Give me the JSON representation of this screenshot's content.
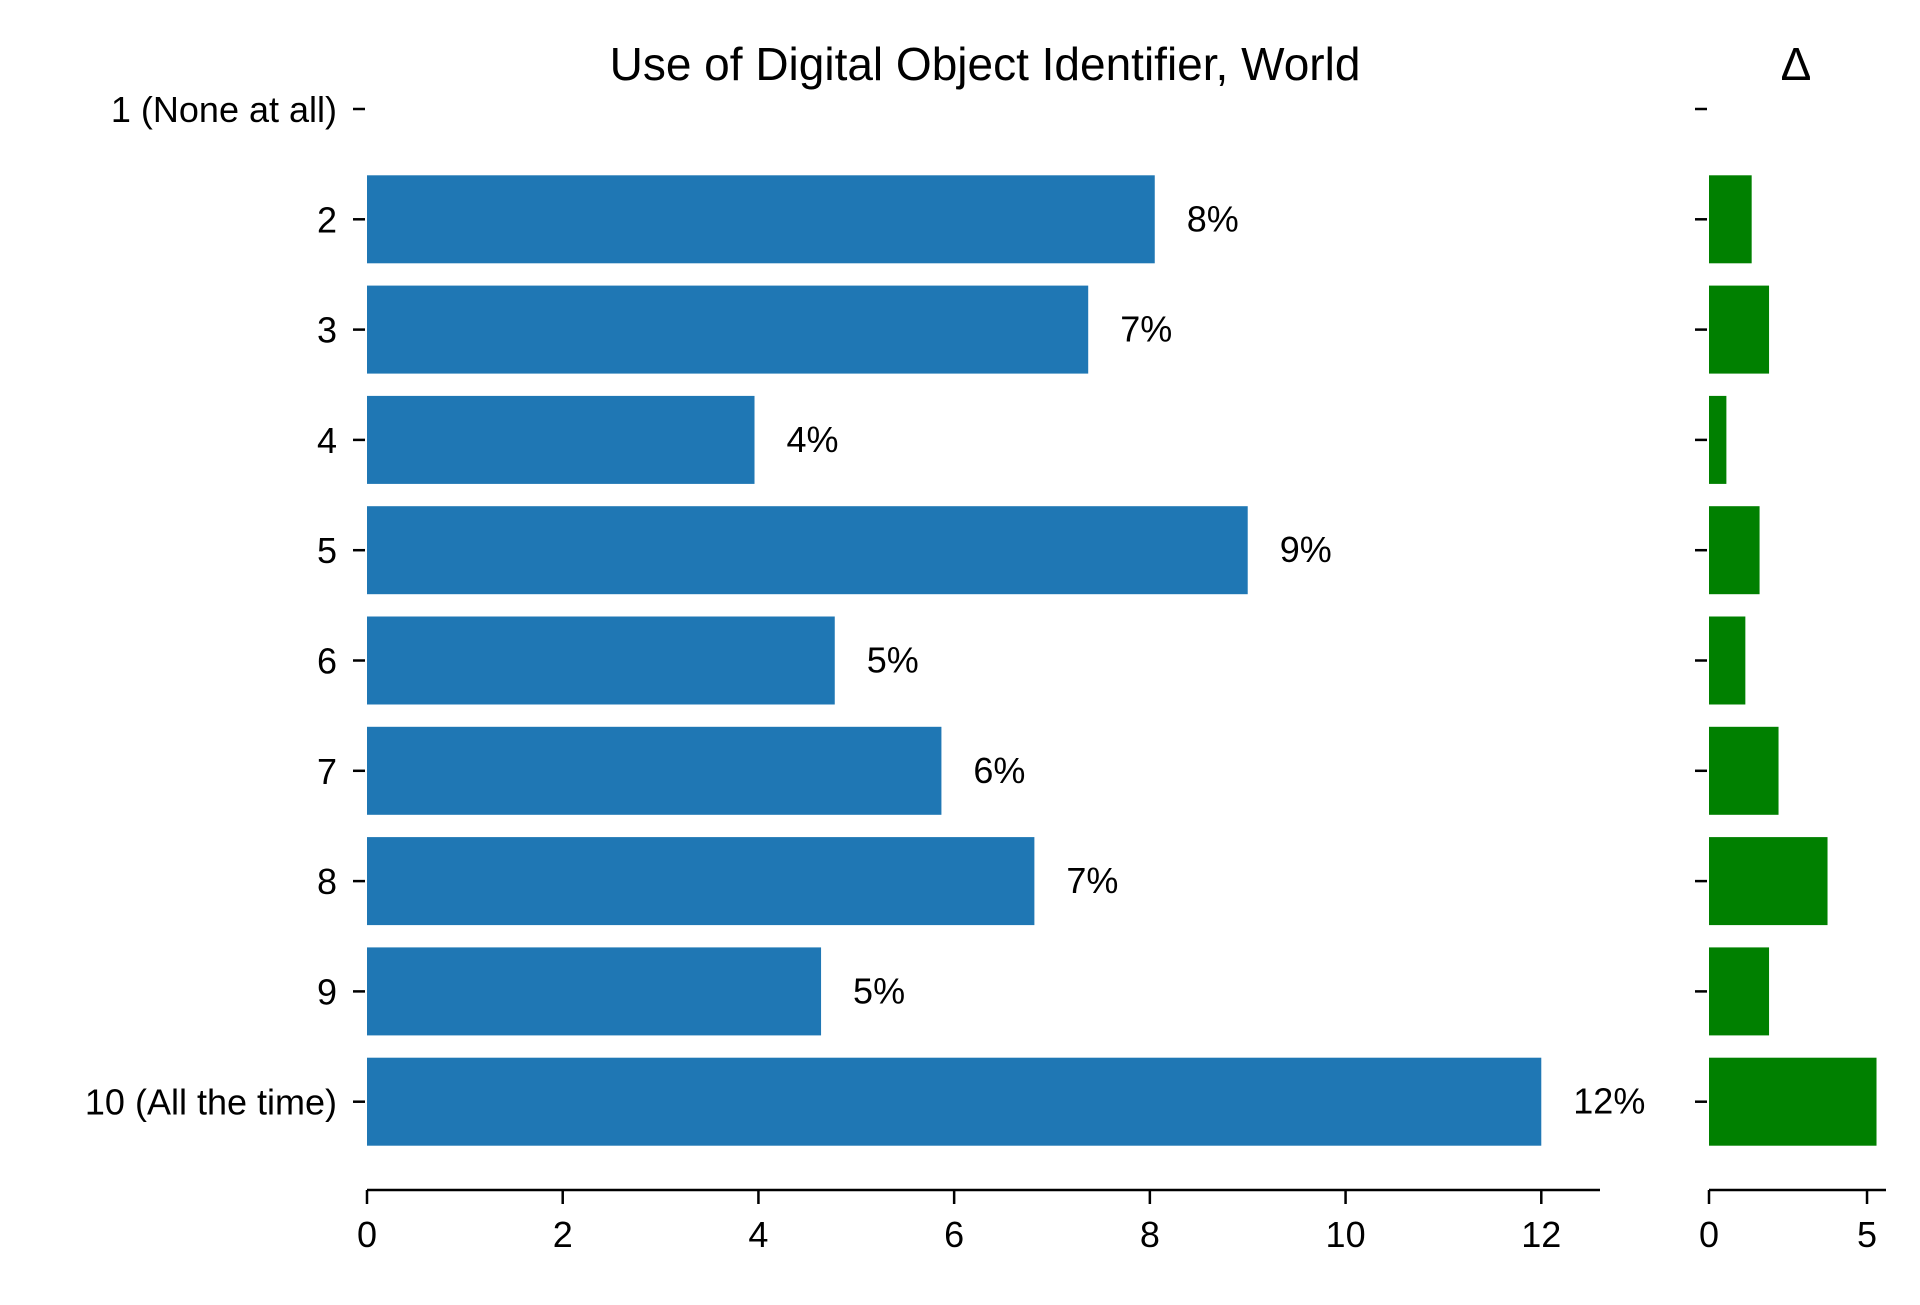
{
  "chart_data": [
    {
      "type": "bar",
      "orientation": "horizontal",
      "title": "Use of Digital Object Identifier, World",
      "categories": [
        "1 (None at all)",
        "2",
        "3",
        "4",
        "5",
        "6",
        "7",
        "8",
        "9",
        "10 (All the time)"
      ],
      "values": [
        0,
        8.05,
        7.37,
        3.96,
        9.0,
        4.78,
        5.87,
        6.82,
        4.64,
        12.0
      ],
      "data_labels": [
        "",
        "8%",
        "7%",
        "4%",
        "9%",
        "5%",
        "6%",
        "7%",
        "5%",
        "12%"
      ],
      "xlim": [
        0,
        12.6
      ],
      "x_ticks": [
        0,
        2,
        4,
        6,
        8,
        10,
        12
      ],
      "x_tick_labels": [
        "0",
        "2",
        "4",
        "6",
        "8",
        "10",
        "12"
      ],
      "bar_color": "#1f77b4",
      "grid": false,
      "legend": "none"
    },
    {
      "type": "bar",
      "orientation": "horizontal",
      "title": "Δ",
      "categories": [
        "1 (None at all)",
        "2",
        "3",
        "4",
        "5",
        "6",
        "7",
        "8",
        "9",
        "10 (All the time)"
      ],
      "values": [
        0,
        1.35,
        1.9,
        0.55,
        1.6,
        1.15,
        2.2,
        3.75,
        1.9,
        5.3
      ],
      "xlim": [
        0,
        5.6
      ],
      "x_ticks": [
        0,
        5
      ],
      "x_tick_labels": [
        "0",
        "5"
      ],
      "bar_color": "#008000",
      "grid": false,
      "legend": "none"
    }
  ]
}
